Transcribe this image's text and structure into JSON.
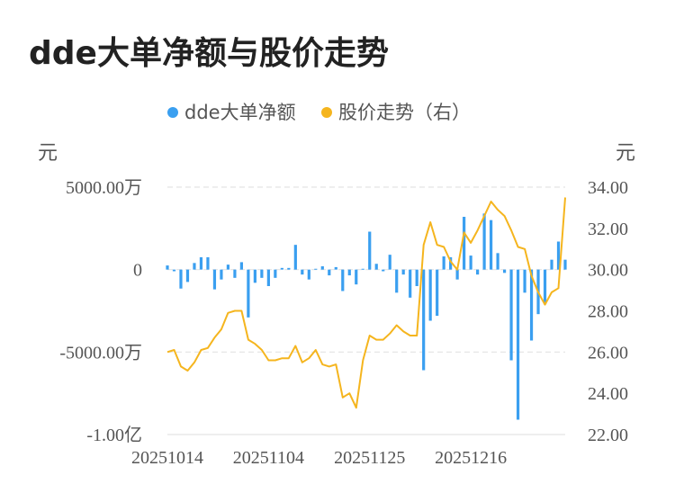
{
  "title": "dde大单净额与股价走势",
  "colors": {
    "bar": "#3a9ff0",
    "line": "#f5b51e",
    "grid": "#e3e3e3"
  },
  "chart_data": {
    "type": "bar+line",
    "title": "dde大单净额与股价走势",
    "legend": [
      {
        "label": "dde大单净额",
        "color": "#3a9ff0"
      },
      {
        "label": "股价走势（右）",
        "color": "#f5b51e"
      }
    ],
    "legend_position": "top-center",
    "left_unit": "元",
    "right_unit": "元",
    "left_axis": {
      "min": -10000,
      "max": 5000,
      "unit": "万",
      "ticks": [
        {
          "value": 5000,
          "label": "5000.00万"
        },
        {
          "value": 0,
          "label": "0"
        },
        {
          "value": -5000,
          "label": "-5000.00万"
        },
        {
          "value": -10000,
          "label": "-1.00亿"
        }
      ]
    },
    "right_axis": {
      "min": 22,
      "max": 34,
      "ticks": [
        "34.00",
        "32.00",
        "30.00",
        "28.00",
        "26.00",
        "24.00",
        "22.00"
      ]
    },
    "x_labels": [
      {
        "index": 0,
        "label": "20251014"
      },
      {
        "index": 15,
        "label": "20251104"
      },
      {
        "index": 30,
        "label": "20251125"
      },
      {
        "index": 45,
        "label": "20251216"
      }
    ],
    "grid": true,
    "series": [
      {
        "name": "dde大单净额",
        "type": "bar",
        "axis": "left",
        "values": [
          250,
          -100,
          -1150,
          -750,
          400,
          750,
          750,
          -1200,
          -600,
          300,
          -500,
          450,
          -2900,
          -800,
          -500,
          -1000,
          -500,
          100,
          100,
          1500,
          -300,
          -600,
          50,
          200,
          -350,
          150,
          -1300,
          -350,
          -900,
          50,
          2300,
          350,
          -100,
          900,
          -1400,
          -300,
          -1700,
          -1000,
          -6100,
          -3100,
          -2800,
          800,
          750,
          -600,
          3200,
          850,
          -300,
          3400,
          3000,
          1000,
          -200,
          -5500,
          -9100,
          -1400,
          -4300,
          -2700,
          -2100,
          600,
          1700,
          600
        ]
      },
      {
        "name": "股价走势（右）",
        "type": "line",
        "axis": "right",
        "values": [
          26.0,
          26.1,
          25.3,
          25.1,
          25.5,
          26.1,
          26.2,
          26.7,
          27.1,
          27.9,
          28.0,
          28.0,
          26.6,
          26.4,
          26.1,
          25.6,
          25.6,
          25.7,
          25.7,
          26.3,
          25.5,
          25.7,
          26.1,
          25.4,
          25.3,
          25.4,
          23.8,
          24.0,
          23.3,
          25.6,
          26.8,
          26.6,
          26.6,
          26.9,
          27.3,
          27.0,
          26.8,
          26.8,
          31.2,
          32.3,
          31.2,
          31.1,
          30.4,
          30.0,
          31.8,
          31.3,
          31.9,
          32.6,
          33.3,
          32.9,
          32.6,
          31.9,
          31.1,
          31.0,
          29.7,
          28.9,
          28.3,
          28.9,
          29.1,
          33.5
        ]
      }
    ]
  }
}
